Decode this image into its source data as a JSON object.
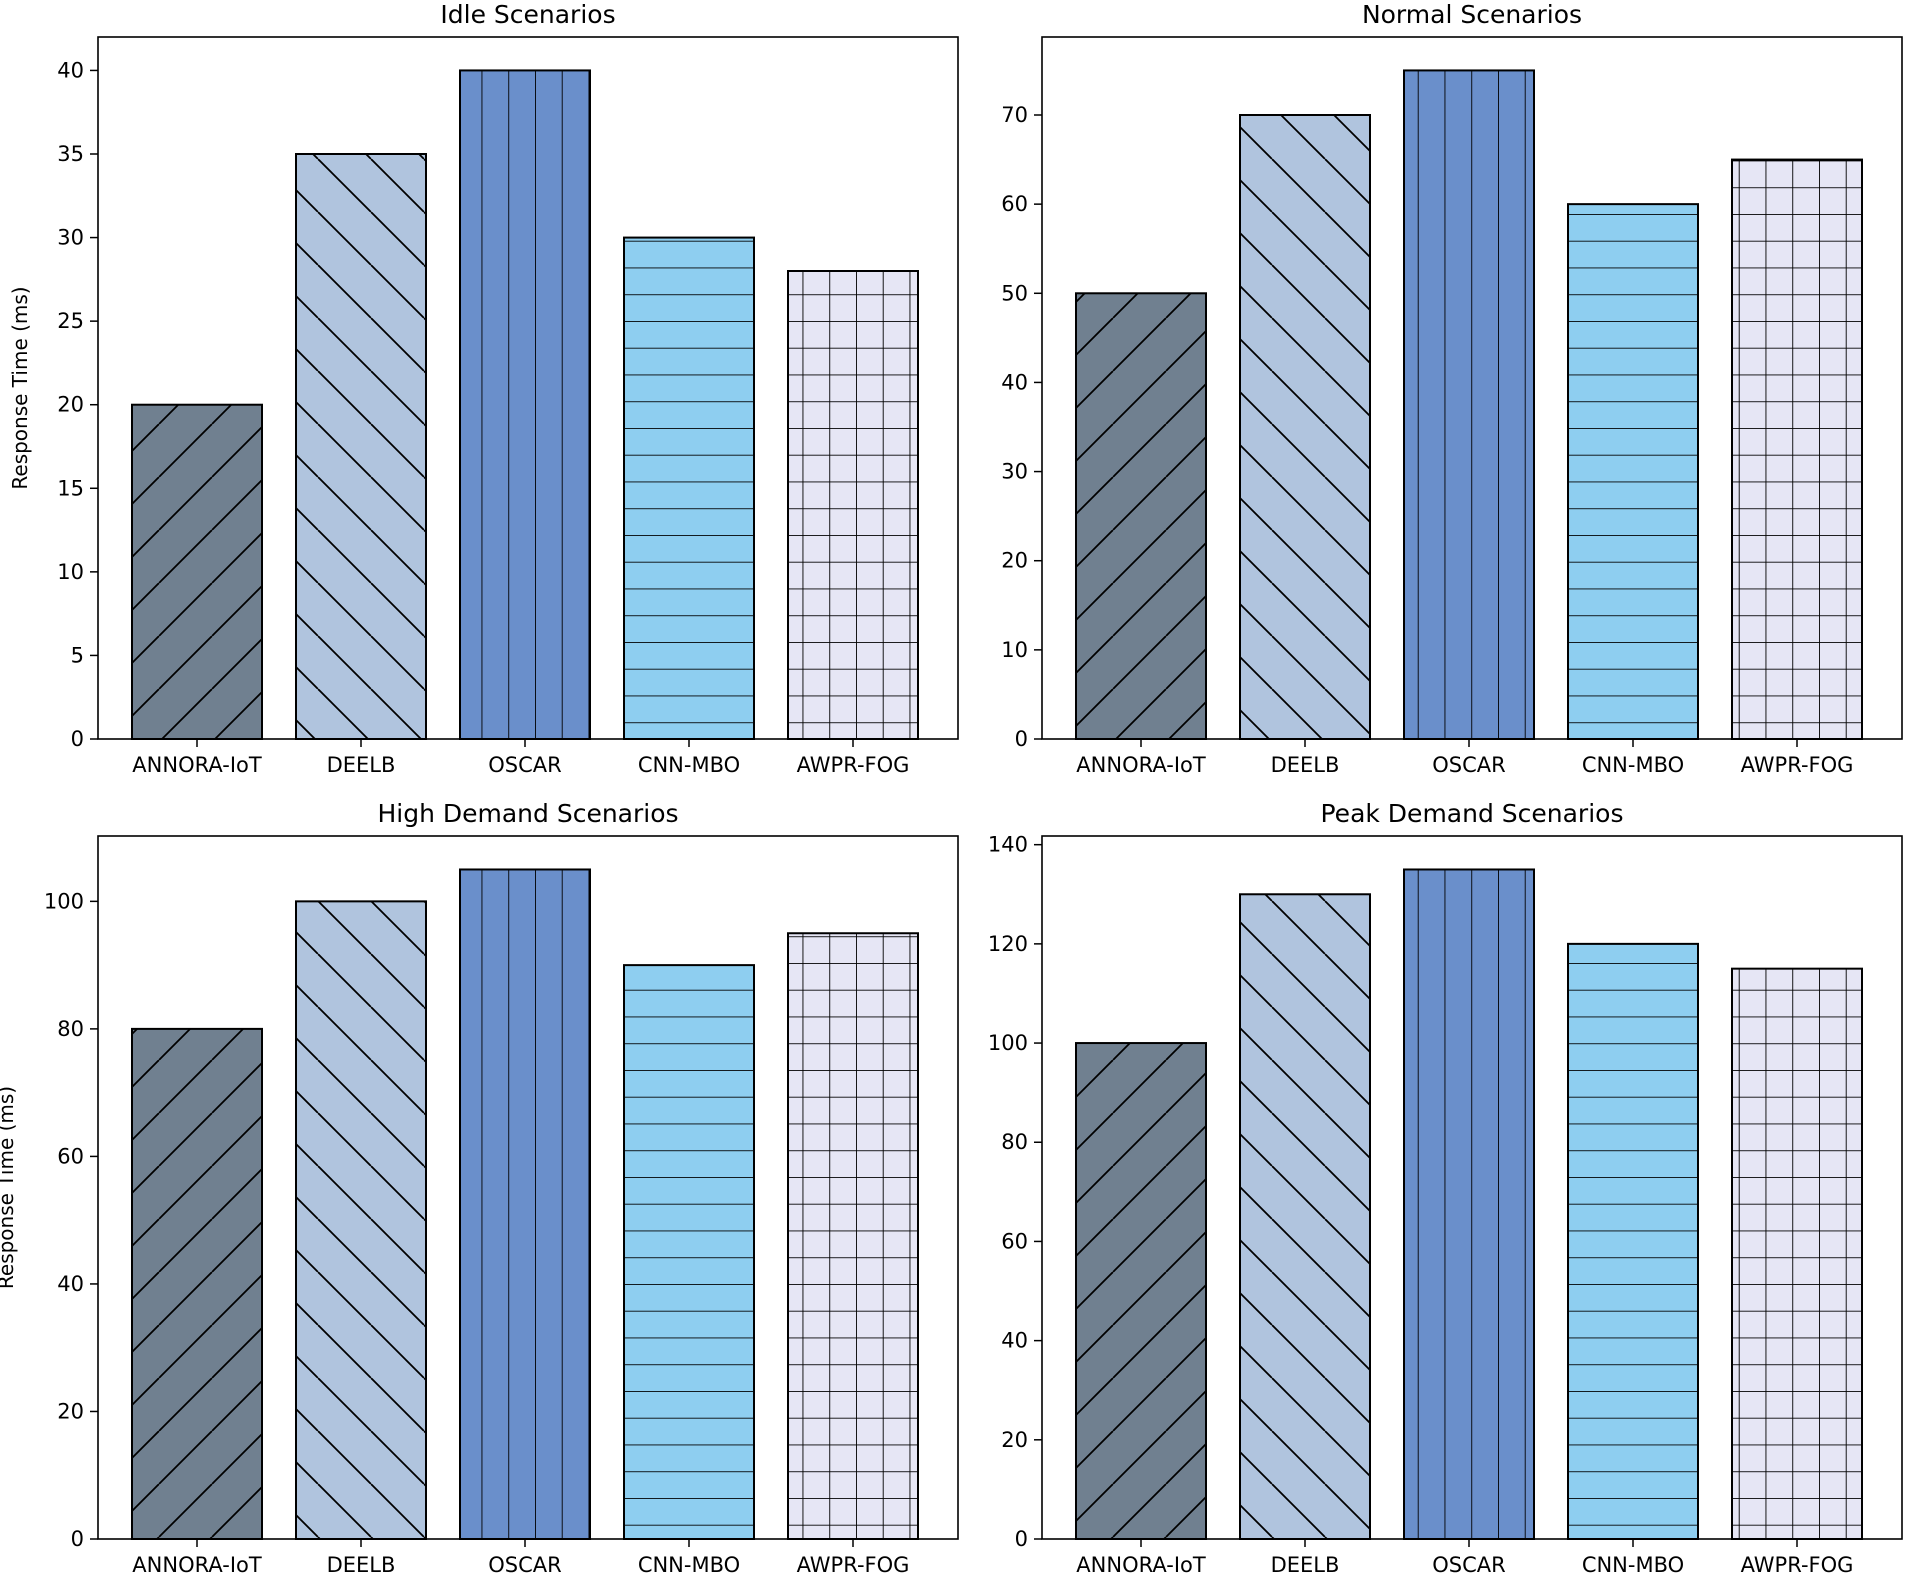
{
  "chart_data": [
    {
      "type": "bar",
      "title": "Idle Scenarios",
      "ylabel": "Response Time (ms)",
      "xlabel": "",
      "categories": [
        "ANNORA-IoT",
        "DEELB",
        "OSCAR",
        "CNN-MBO",
        "AWPR-FOG"
      ],
      "values": [
        20,
        35,
        40,
        30,
        28
      ],
      "ylim": [
        0,
        42
      ],
      "yticks": [
        0,
        5,
        10,
        15,
        20,
        25,
        30,
        35,
        40
      ],
      "grid": false
    },
    {
      "type": "bar",
      "title": "Normal Scenarios",
      "ylabel": "",
      "xlabel": "",
      "categories": [
        "ANNORA-IoT",
        "DEELB",
        "OSCAR",
        "CNN-MBO",
        "AWPR-FOG"
      ],
      "values": [
        50,
        70,
        75,
        60,
        65
      ],
      "ylim": [
        0,
        78.75
      ],
      "yticks": [
        0,
        10,
        20,
        30,
        40,
        50,
        60,
        70
      ],
      "grid": false
    },
    {
      "type": "bar",
      "title": "High Demand Scenarios",
      "ylabel": "Response Time (ms)",
      "xlabel": "",
      "categories": [
        "ANNORA-IoT",
        "DEELB",
        "OSCAR",
        "CNN-MBO",
        "AWPR-FOG"
      ],
      "values": [
        80,
        100,
        105,
        90,
        95
      ],
      "ylim": [
        0,
        110.25
      ],
      "yticks": [
        0,
        20,
        40,
        60,
        80,
        100
      ],
      "grid": false
    },
    {
      "type": "bar",
      "title": "Peak Demand Scenarios",
      "ylabel": "",
      "xlabel": "",
      "categories": [
        "ANNORA-IoT",
        "DEELB",
        "OSCAR",
        "CNN-MBO",
        "AWPR-FOG"
      ],
      "values": [
        100,
        130,
        135,
        120,
        115
      ],
      "ylim": [
        0,
        141.75
      ],
      "yticks": [
        0,
        20,
        40,
        60,
        80,
        100,
        120,
        140
      ],
      "grid": false
    }
  ],
  "series_style": {
    "colors": [
      "#708090",
      "#B0C4DE",
      "#6A8FCB",
      "#8ECEF0",
      "#E6E6F5"
    ],
    "hatch_names": [
      "forward-diagonal",
      "back-diagonal",
      "vertical",
      "horizontal",
      "grid"
    ]
  }
}
